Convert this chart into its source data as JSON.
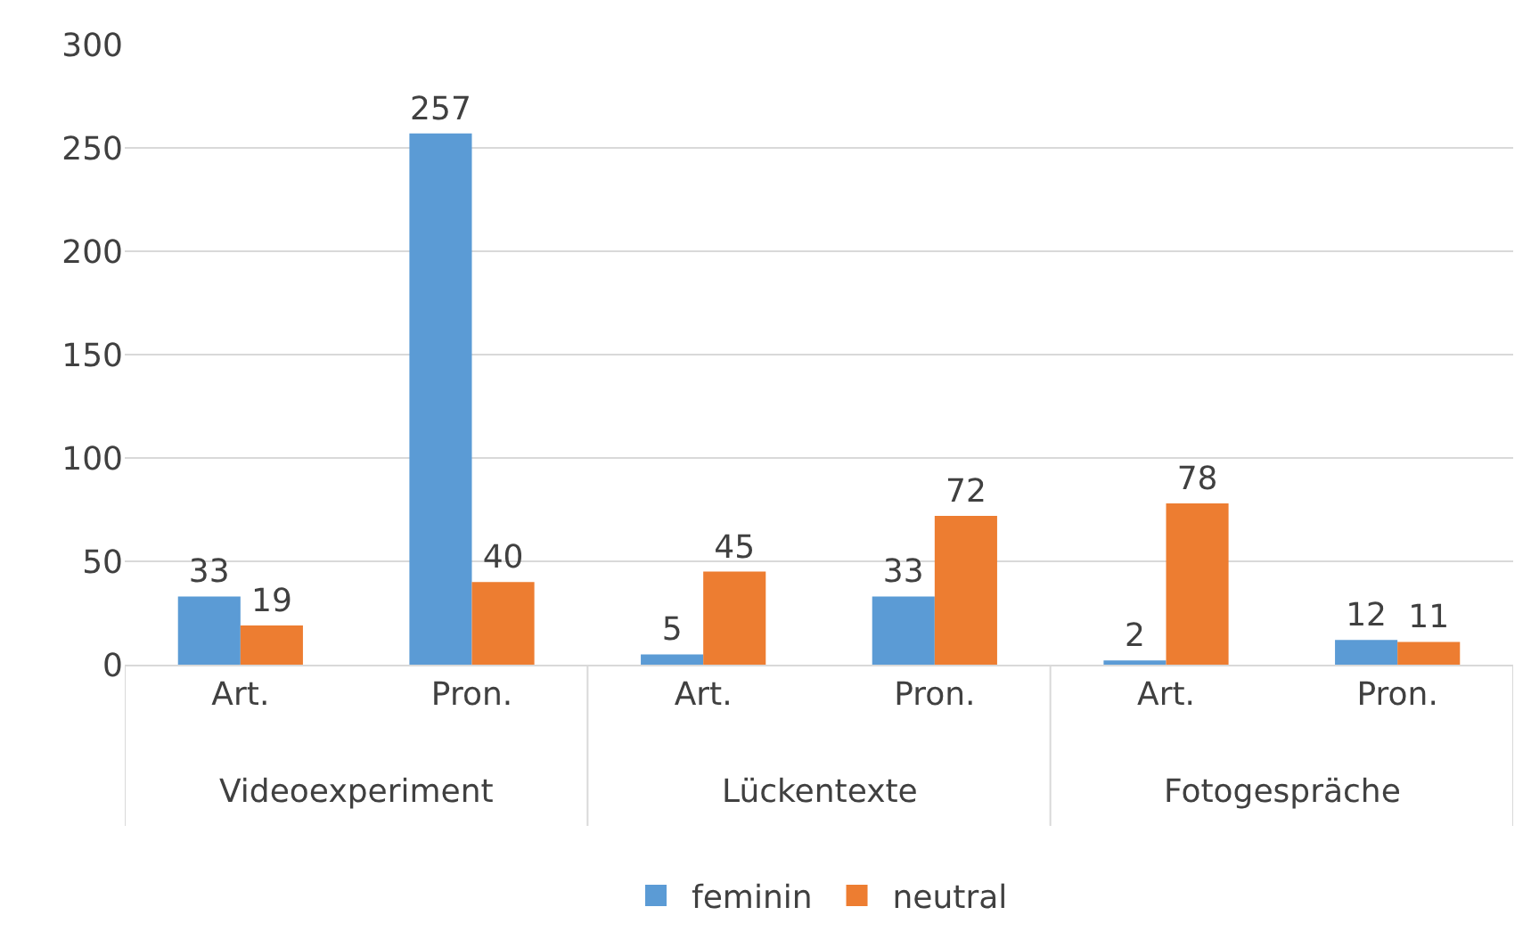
{
  "chart_data": {
    "type": "bar",
    "categories": [
      "Art.",
      "Pron.",
      "Art.",
      "Pron.",
      "Art.",
      "Pron."
    ],
    "series": [
      {
        "name": "feminin",
        "color": "#5b9bd5",
        "values": [
          33,
          257,
          5,
          33,
          2,
          12
        ]
      },
      {
        "name": "neutral",
        "color": "#ed7d31",
        "values": [
          19,
          40,
          45,
          72,
          78,
          11
        ]
      }
    ],
    "annotations": [
      "Videoexperiment",
      "Lückentexte",
      "Fotogespräche"
    ],
    "ylim": [
      0,
      300
    ],
    "yticks": [
      0,
      50,
      100,
      150,
      200,
      250,
      300
    ],
    "grid": "y",
    "data_labels": true,
    "legend": "bottom"
  }
}
